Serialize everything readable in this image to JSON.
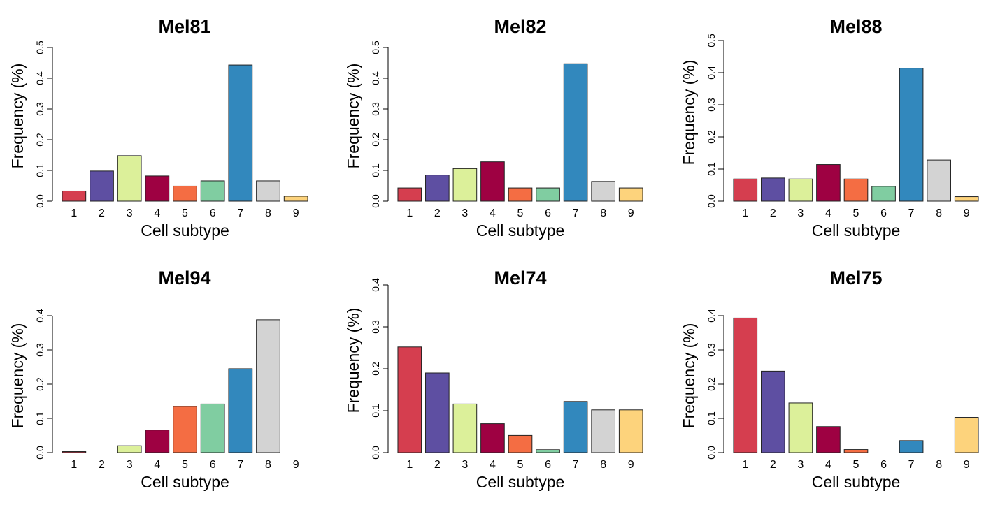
{
  "subtype_colors": [
    "#D53E4F",
    "#5E4FA2",
    "#DCF09A",
    "#9E0142",
    "#F46D43",
    "#80CDA1",
    "#3288BD",
    "#D3D3D3",
    "#FDD37C"
  ],
  "chart_data": [
    {
      "type": "bar",
      "title": "Mel81",
      "xlabel": "Cell subtype",
      "ylabel": "Frequency (%)",
      "categories": [
        "1",
        "2",
        "3",
        "4",
        "5",
        "6",
        "7",
        "8",
        "9"
      ],
      "values": [
        0.033,
        0.098,
        0.148,
        0.082,
        0.049,
        0.066,
        0.443,
        0.066,
        0.016
      ],
      "ylim": [
        0,
        0.5
      ],
      "yticks": [
        "0.0",
        "0.1",
        "0.2",
        "0.3",
        "0.4",
        "0.5"
      ]
    },
    {
      "type": "bar",
      "title": "Mel82",
      "xlabel": "Cell subtype",
      "ylabel": "Frequency (%)",
      "categories": [
        "1",
        "2",
        "3",
        "4",
        "5",
        "6",
        "7",
        "8",
        "9"
      ],
      "values": [
        0.043,
        0.085,
        0.106,
        0.128,
        0.043,
        0.043,
        0.447,
        0.064,
        0.043
      ],
      "ylim": [
        0,
        0.5
      ],
      "yticks": [
        "0.0",
        "0.1",
        "0.2",
        "0.3",
        "0.4",
        "0.5"
      ]
    },
    {
      "type": "bar",
      "title": "Mel88",
      "xlabel": "Cell subtype",
      "ylabel": "Frequency (%)",
      "categories": [
        "1",
        "2",
        "3",
        "4",
        "5",
        "6",
        "7",
        "8",
        "9"
      ],
      "values": [
        0.069,
        0.072,
        0.069,
        0.114,
        0.069,
        0.046,
        0.414,
        0.128,
        0.014
      ],
      "ylim": [
        0,
        0.5
      ],
      "yticks": [
        "0.0",
        "0.1",
        "0.2",
        "0.3",
        "0.4",
        "0.5"
      ]
    },
    {
      "type": "bar",
      "title": "Mel94",
      "xlabel": "Cell subtype",
      "ylabel": "Frequency (%)",
      "categories": [
        "1",
        "2",
        "3",
        "4",
        "5",
        "6",
        "7",
        "8",
        "9"
      ],
      "values": [
        0.003,
        0.0,
        0.02,
        0.066,
        0.135,
        0.142,
        0.245,
        0.388,
        0.0
      ],
      "ylim": [
        0,
        0.4
      ],
      "yticks": [
        "0.0",
        "0.1",
        "0.2",
        "0.3",
        "0.4"
      ]
    },
    {
      "type": "bar",
      "title": "Mel74",
      "xlabel": "Cell subtype",
      "ylabel": "Frequency (%)",
      "categories": [
        "1",
        "2",
        "3",
        "4",
        "5",
        "6",
        "7",
        "8",
        "9"
      ],
      "values": [
        0.252,
        0.19,
        0.116,
        0.069,
        0.041,
        0.007,
        0.122,
        0.102,
        0.102
      ],
      "ylim": [
        0,
        0.4
      ],
      "yticks": [
        "0.0",
        "0.1",
        "0.2",
        "0.3",
        "0.4"
      ]
    },
    {
      "type": "bar",
      "title": "Mel75",
      "xlabel": "Cell subtype",
      "ylabel": "Frequency (%)",
      "categories": [
        "1",
        "2",
        "3",
        "4",
        "5",
        "6",
        "7",
        "8",
        "9"
      ],
      "values": [
        0.393,
        0.238,
        0.145,
        0.076,
        0.009,
        0.0,
        0.035,
        0.0,
        0.103
      ],
      "ylim": [
        0,
        0.4
      ],
      "yticks": [
        "0.0",
        "0.1",
        "0.2",
        "0.3",
        "0.4"
      ]
    }
  ]
}
